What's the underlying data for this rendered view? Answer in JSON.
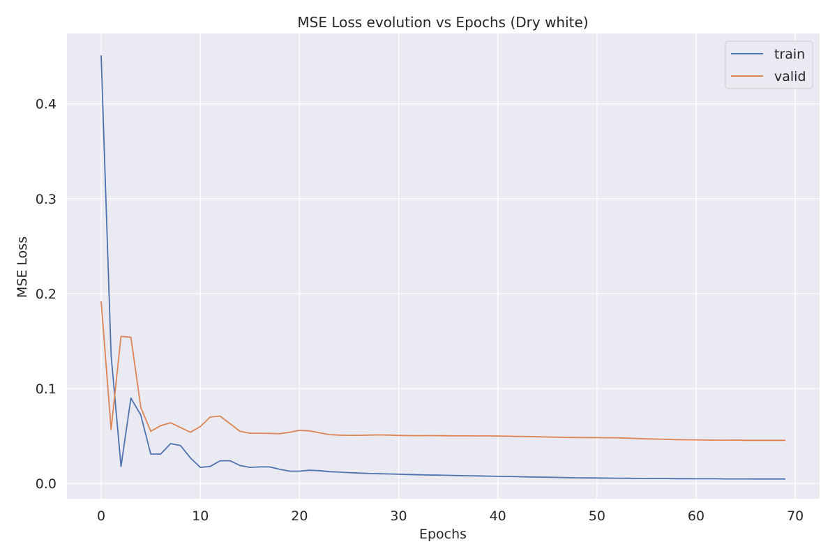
{
  "chart_data": {
    "type": "line",
    "title": "MSE Loss evolution vs Epochs (Dry white)",
    "xlabel": "Epochs",
    "ylabel": "MSE Loss",
    "xlim": [
      -3.45,
      72.45
    ],
    "ylim": [
      -0.016,
      0.474
    ],
    "xticks": [
      0,
      10,
      20,
      30,
      40,
      50,
      60,
      70
    ],
    "yticks": [
      0.0,
      0.1,
      0.2,
      0.3,
      0.4
    ],
    "ytick_labels": [
      "0.0",
      "0.1",
      "0.2",
      "0.3",
      "0.4"
    ],
    "grid": true,
    "legend_position": "top-right",
    "colors": {
      "background": "#eaeaf2",
      "grid": "#ffffff",
      "train": "#4c72b0",
      "valid": "#dd8452"
    },
    "series": [
      {
        "name": "train",
        "color": "#4c72b0",
        "values": [
          0.451,
          0.135,
          0.018,
          0.09,
          0.072,
          0.031,
          0.031,
          0.042,
          0.04,
          0.027,
          0.017,
          0.018,
          0.024,
          0.024,
          0.019,
          0.017,
          0.0175,
          0.0175,
          0.015,
          0.013,
          0.013,
          0.014,
          0.0135,
          0.0125,
          0.012,
          0.0115,
          0.011,
          0.0105,
          0.0103,
          0.0101,
          0.0098,
          0.0095,
          0.0092,
          0.009,
          0.0088,
          0.0086,
          0.0084,
          0.0082,
          0.008,
          0.0078,
          0.0076,
          0.0074,
          0.0072,
          0.007,
          0.0068,
          0.0066,
          0.0064,
          0.0062,
          0.006,
          0.0059,
          0.0058,
          0.0057,
          0.0056,
          0.0055,
          0.0054,
          0.0053,
          0.0052,
          0.0052,
          0.0051,
          0.0051,
          0.005,
          0.005,
          0.005,
          0.0049,
          0.0049,
          0.0049,
          0.0048,
          0.0048,
          0.0048,
          0.0048
        ]
      },
      {
        "name": "valid",
        "color": "#dd8452",
        "values": [
          0.192,
          0.057,
          0.155,
          0.154,
          0.08,
          0.055,
          0.061,
          0.064,
          0.059,
          0.054,
          0.06,
          0.07,
          0.071,
          0.063,
          0.055,
          0.053,
          0.053,
          0.0528,
          0.0525,
          0.054,
          0.056,
          0.0555,
          0.0535,
          0.0515,
          0.051,
          0.0508,
          0.0508,
          0.051,
          0.0512,
          0.051,
          0.0506,
          0.0505,
          0.0504,
          0.0505,
          0.0504,
          0.0503,
          0.0502,
          0.0502,
          0.0501,
          0.0501,
          0.05,
          0.0498,
          0.0496,
          0.0495,
          0.0492,
          0.049,
          0.0488,
          0.0486,
          0.0485,
          0.0484,
          0.0484,
          0.0482,
          0.0482,
          0.0478,
          0.0474,
          0.047,
          0.0468,
          0.0465,
          0.0462,
          0.0461,
          0.046,
          0.0458,
          0.0457,
          0.0456,
          0.0458,
          0.0455,
          0.0455,
          0.0455,
          0.0455,
          0.0455
        ]
      }
    ]
  }
}
